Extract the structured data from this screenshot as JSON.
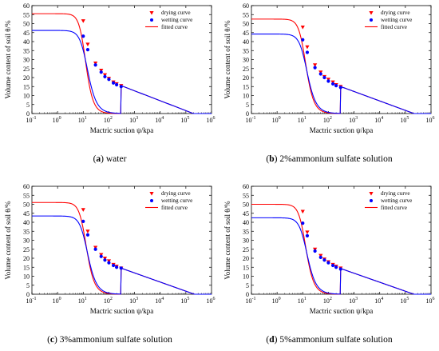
{
  "chart_data": [
    {
      "type": "scatter",
      "caption_letter": "a",
      "caption_text": "water",
      "xlabel": "Mactric suction ψ/kpa",
      "ylabel": "Volume content of soil θ/%",
      "xscale": "log",
      "xlim": [
        0.1,
        1000000
      ],
      "ylim": [
        0,
        60
      ],
      "yticks": [
        0,
        5,
        10,
        15,
        20,
        25,
        30,
        35,
        40,
        45,
        50,
        55,
        60
      ],
      "xtick_exponents": [
        "-1",
        "0",
        "1",
        "2",
        "3",
        "4",
        "5",
        "6"
      ],
      "legend_position": "top-right",
      "legend": [
        "drying curve",
        "wetting curve",
        "fitted curve"
      ],
      "drying_points": {
        "x": [
          10,
          15,
          30,
          50,
          70,
          100,
          150,
          200,
          300
        ],
        "y": [
          51.5,
          38.5,
          28,
          24,
          21.5,
          19.5,
          17.5,
          16.5,
          15.5
        ]
      },
      "wetting_points": {
        "x": [
          10,
          15,
          30,
          50,
          70,
          100,
          150,
          200,
          300
        ],
        "y": [
          43,
          35.5,
          27,
          23,
          20.5,
          19,
          17,
          16,
          15
        ]
      },
      "drying_fit": {
        "theta_s": 55.5,
        "theta_r": 0,
        "hb": 11,
        "n": 3.5,
        "a_tail": 15.5,
        "b_tail": 0.355
      },
      "wetting_fit": {
        "theta_s": 46.2,
        "theta_r": 0,
        "hb": 12.5,
        "n": 3.0,
        "a_tail": 15.5,
        "b_tail": 0.355
      }
    },
    {
      "type": "scatter",
      "caption_letter": "b",
      "caption_text": "2%ammonium sulfate solution",
      "xlabel": "Mactric suction ψ/kpa",
      "ylabel": "Volume content of soil θ/%",
      "xscale": "log",
      "xlim": [
        0.1,
        1000000
      ],
      "ylim": [
        0,
        60
      ],
      "yticks": [
        0,
        5,
        10,
        15,
        20,
        25,
        30,
        35,
        40,
        45,
        50,
        55,
        60
      ],
      "xtick_exponents": [
        "-1",
        "0",
        "1",
        "2",
        "3",
        "4",
        "5",
        "6"
      ],
      "legend_position": "top-right",
      "legend": [
        "drying curve",
        "wetting curve",
        "fitted curve"
      ],
      "drying_points": {
        "x": [
          10,
          15,
          30,
          50,
          70,
          100,
          150,
          200,
          300
        ],
        "y": [
          48,
          37,
          27,
          23,
          20.5,
          19,
          17.5,
          16,
          15
        ]
      },
      "wetting_points": {
        "x": [
          10,
          15,
          30,
          50,
          70,
          100,
          150,
          200,
          300
        ],
        "y": [
          41,
          34,
          25.5,
          22,
          20,
          18,
          16.5,
          15.5,
          14.5
        ]
      },
      "drying_fit": {
        "theta_s": 52.5,
        "theta_r": 0,
        "hb": 11.5,
        "n": 3.3,
        "a_tail": 15,
        "b_tail": 0.35
      },
      "wetting_fit": {
        "theta_s": 44.2,
        "theta_r": 0,
        "hb": 12.5,
        "n": 3.0,
        "a_tail": 15,
        "b_tail": 0.35
      }
    },
    {
      "type": "scatter",
      "caption_letter": "c",
      "caption_text": "3%ammonium sulfate solution",
      "xlabel": "Mactric suction ψ/kpa",
      "ylabel": "Volume content of soil θ/%",
      "xscale": "log",
      "xlim": [
        0.1,
        1000000
      ],
      "ylim": [
        0,
        60
      ],
      "yticks": [
        0,
        5,
        10,
        15,
        20,
        25,
        30,
        35,
        40,
        45,
        50,
        55,
        60
      ],
      "xtick_exponents": [
        "-1",
        "0",
        "1",
        "2",
        "3",
        "4",
        "5",
        "6"
      ],
      "legend_position": "top-right",
      "legend": [
        "drying curve",
        "wetting curve",
        "fitted curve"
      ],
      "drying_points": {
        "x": [
          10,
          15,
          30,
          50,
          70,
          100,
          150,
          200,
          300
        ],
        "y": [
          47,
          35,
          26,
          22,
          20,
          18.5,
          16.5,
          15.5,
          14.5
        ]
      },
      "wetting_points": {
        "x": [
          10,
          15,
          30,
          50,
          70,
          100,
          150,
          200,
          300
        ],
        "y": [
          40.5,
          33,
          25,
          21,
          19,
          17.5,
          16,
          15,
          14.5
        ]
      },
      "drying_fit": {
        "theta_s": 51,
        "theta_r": 0,
        "hb": 11.5,
        "n": 3.3,
        "a_tail": 14.5,
        "b_tail": 0.35
      },
      "wetting_fit": {
        "theta_s": 43.5,
        "theta_r": 0,
        "hb": 12.5,
        "n": 3.0,
        "a_tail": 14.5,
        "b_tail": 0.35
      }
    },
    {
      "type": "scatter",
      "caption_letter": "d",
      "caption_text": "5%ammonium sulfate solution",
      "xlabel": "Mactric suction ψ/kpa",
      "ylabel": "Volume content of soil θ/%",
      "xscale": "log",
      "xlim": [
        0.1,
        1000000
      ],
      "ylim": [
        0,
        60
      ],
      "yticks": [
        0,
        5,
        10,
        15,
        20,
        25,
        30,
        35,
        40,
        45,
        50,
        55,
        60
      ],
      "xtick_exponents": [
        "-1",
        "0",
        "1",
        "2",
        "3",
        "4",
        "5",
        "6"
      ],
      "legend_position": "top-right",
      "legend": [
        "drying curve",
        "wetting curve",
        "fitted curve"
      ],
      "drying_points": {
        "x": [
          10,
          15,
          30,
          50,
          70,
          100,
          150,
          200,
          300
        ],
        "y": [
          46,
          34.5,
          25,
          21.5,
          19.5,
          18,
          16.5,
          15.5,
          14.5
        ]
      },
      "wetting_points": {
        "x": [
          10,
          15,
          30,
          50,
          70,
          100,
          150,
          200,
          300
        ],
        "y": [
          39.5,
          32.5,
          24,
          20.5,
          19,
          17.5,
          16,
          15,
          14
        ]
      },
      "drying_fit": {
        "theta_s": 50,
        "theta_r": 0,
        "hb": 11.5,
        "n": 3.3,
        "a_tail": 14.3,
        "b_tail": 0.35
      },
      "wetting_fit": {
        "theta_s": 42.5,
        "theta_r": 0,
        "hb": 12.5,
        "n": 3.0,
        "a_tail": 14.3,
        "b_tail": 0.35
      }
    }
  ],
  "colors": {
    "drying": "#ff0000",
    "wetting": "#0000ff",
    "fitted": "#ff0000",
    "wetting_fit": "#0000ff"
  }
}
